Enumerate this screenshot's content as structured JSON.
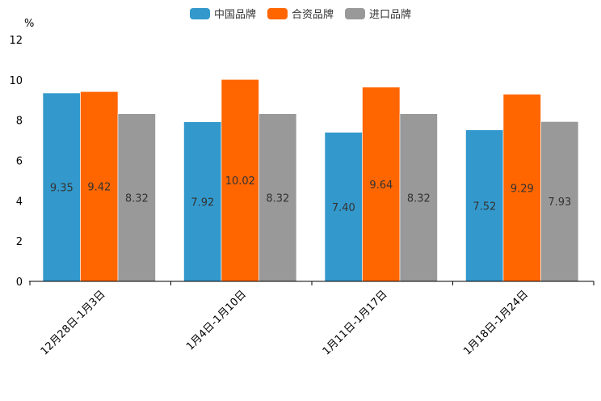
{
  "chart_data": {
    "type": "bar",
    "categories": [
      "12月28日-1月3日",
      "1月4日-1月10日",
      "1月11日-1月17日",
      "1月18日-1月24日"
    ],
    "series": [
      {
        "name": "中国品牌",
        "color": "#3399cc",
        "values": [
          9.35,
          7.92,
          7.4,
          7.52
        ],
        "labels": [
          "9.35",
          "7.92",
          "7.40",
          "7.52"
        ]
      },
      {
        "name": "合资品牌",
        "color": "#ff6600",
        "values": [
          9.42,
          10.02,
          9.64,
          9.29
        ],
        "labels": [
          "9.42",
          "10.02",
          "9.64",
          "9.29"
        ]
      },
      {
        "name": "进口品牌",
        "color": "#999999",
        "values": [
          8.32,
          8.32,
          8.32,
          7.93
        ],
        "labels": [
          "8.32",
          "8.32",
          "8.32",
          "7.93"
        ]
      }
    ],
    "yunit": "%",
    "ylim": [
      0,
      12
    ],
    "yticks": [
      "0",
      "2",
      "4",
      "6",
      "8",
      "10",
      "12"
    ],
    "legend_position": "top-center",
    "grid": false
  }
}
